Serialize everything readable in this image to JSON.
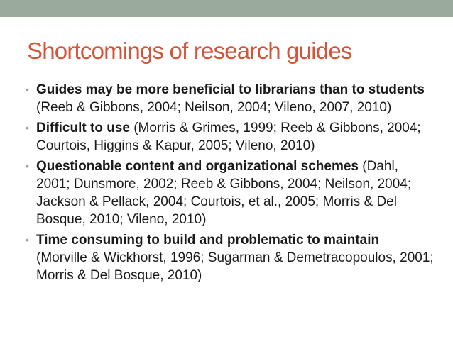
{
  "slide": {
    "title": "Shortcomings of research guides",
    "bullet_symbol": "•",
    "bullets": [
      {
        "lead": "Guides may be more beneficial to librarians than to students",
        "citation": "(Reeb & Gibbons, 2004; Neilson, 2004; Vileno, 2007, 2010)"
      },
      {
        "lead": "Difficult to use",
        "citation": "(Morris & Grimes, 1999; Reeb & Gibbons, 2004; Courtois, Higgins & Kapur, 2005; Vileno, 2010)"
      },
      {
        "lead": "Questionable content and organizational schemes",
        "citation": "(Dahl, 2001; Dunsmore, 2002; Reeb & Gibbons, 2004; Neilson, 2004; Jackson & Pellack, 2004; Courtois, et al., 2005; Morris & Del Bosque, 2010; Vileno, 2010)"
      },
      {
        "lead": "Time consuming to build and problematic to maintain",
        "citation": "(Morville & Wickhorst, 1996; Sugarman & Demetracopoulos, 2001; Morris & Del Bosque, 2010)"
      }
    ]
  },
  "colors": {
    "top_bar": "#9bab9b",
    "title": "#d4543a",
    "body_text": "#1a1a1a",
    "bullet": "#9a9a9a"
  }
}
